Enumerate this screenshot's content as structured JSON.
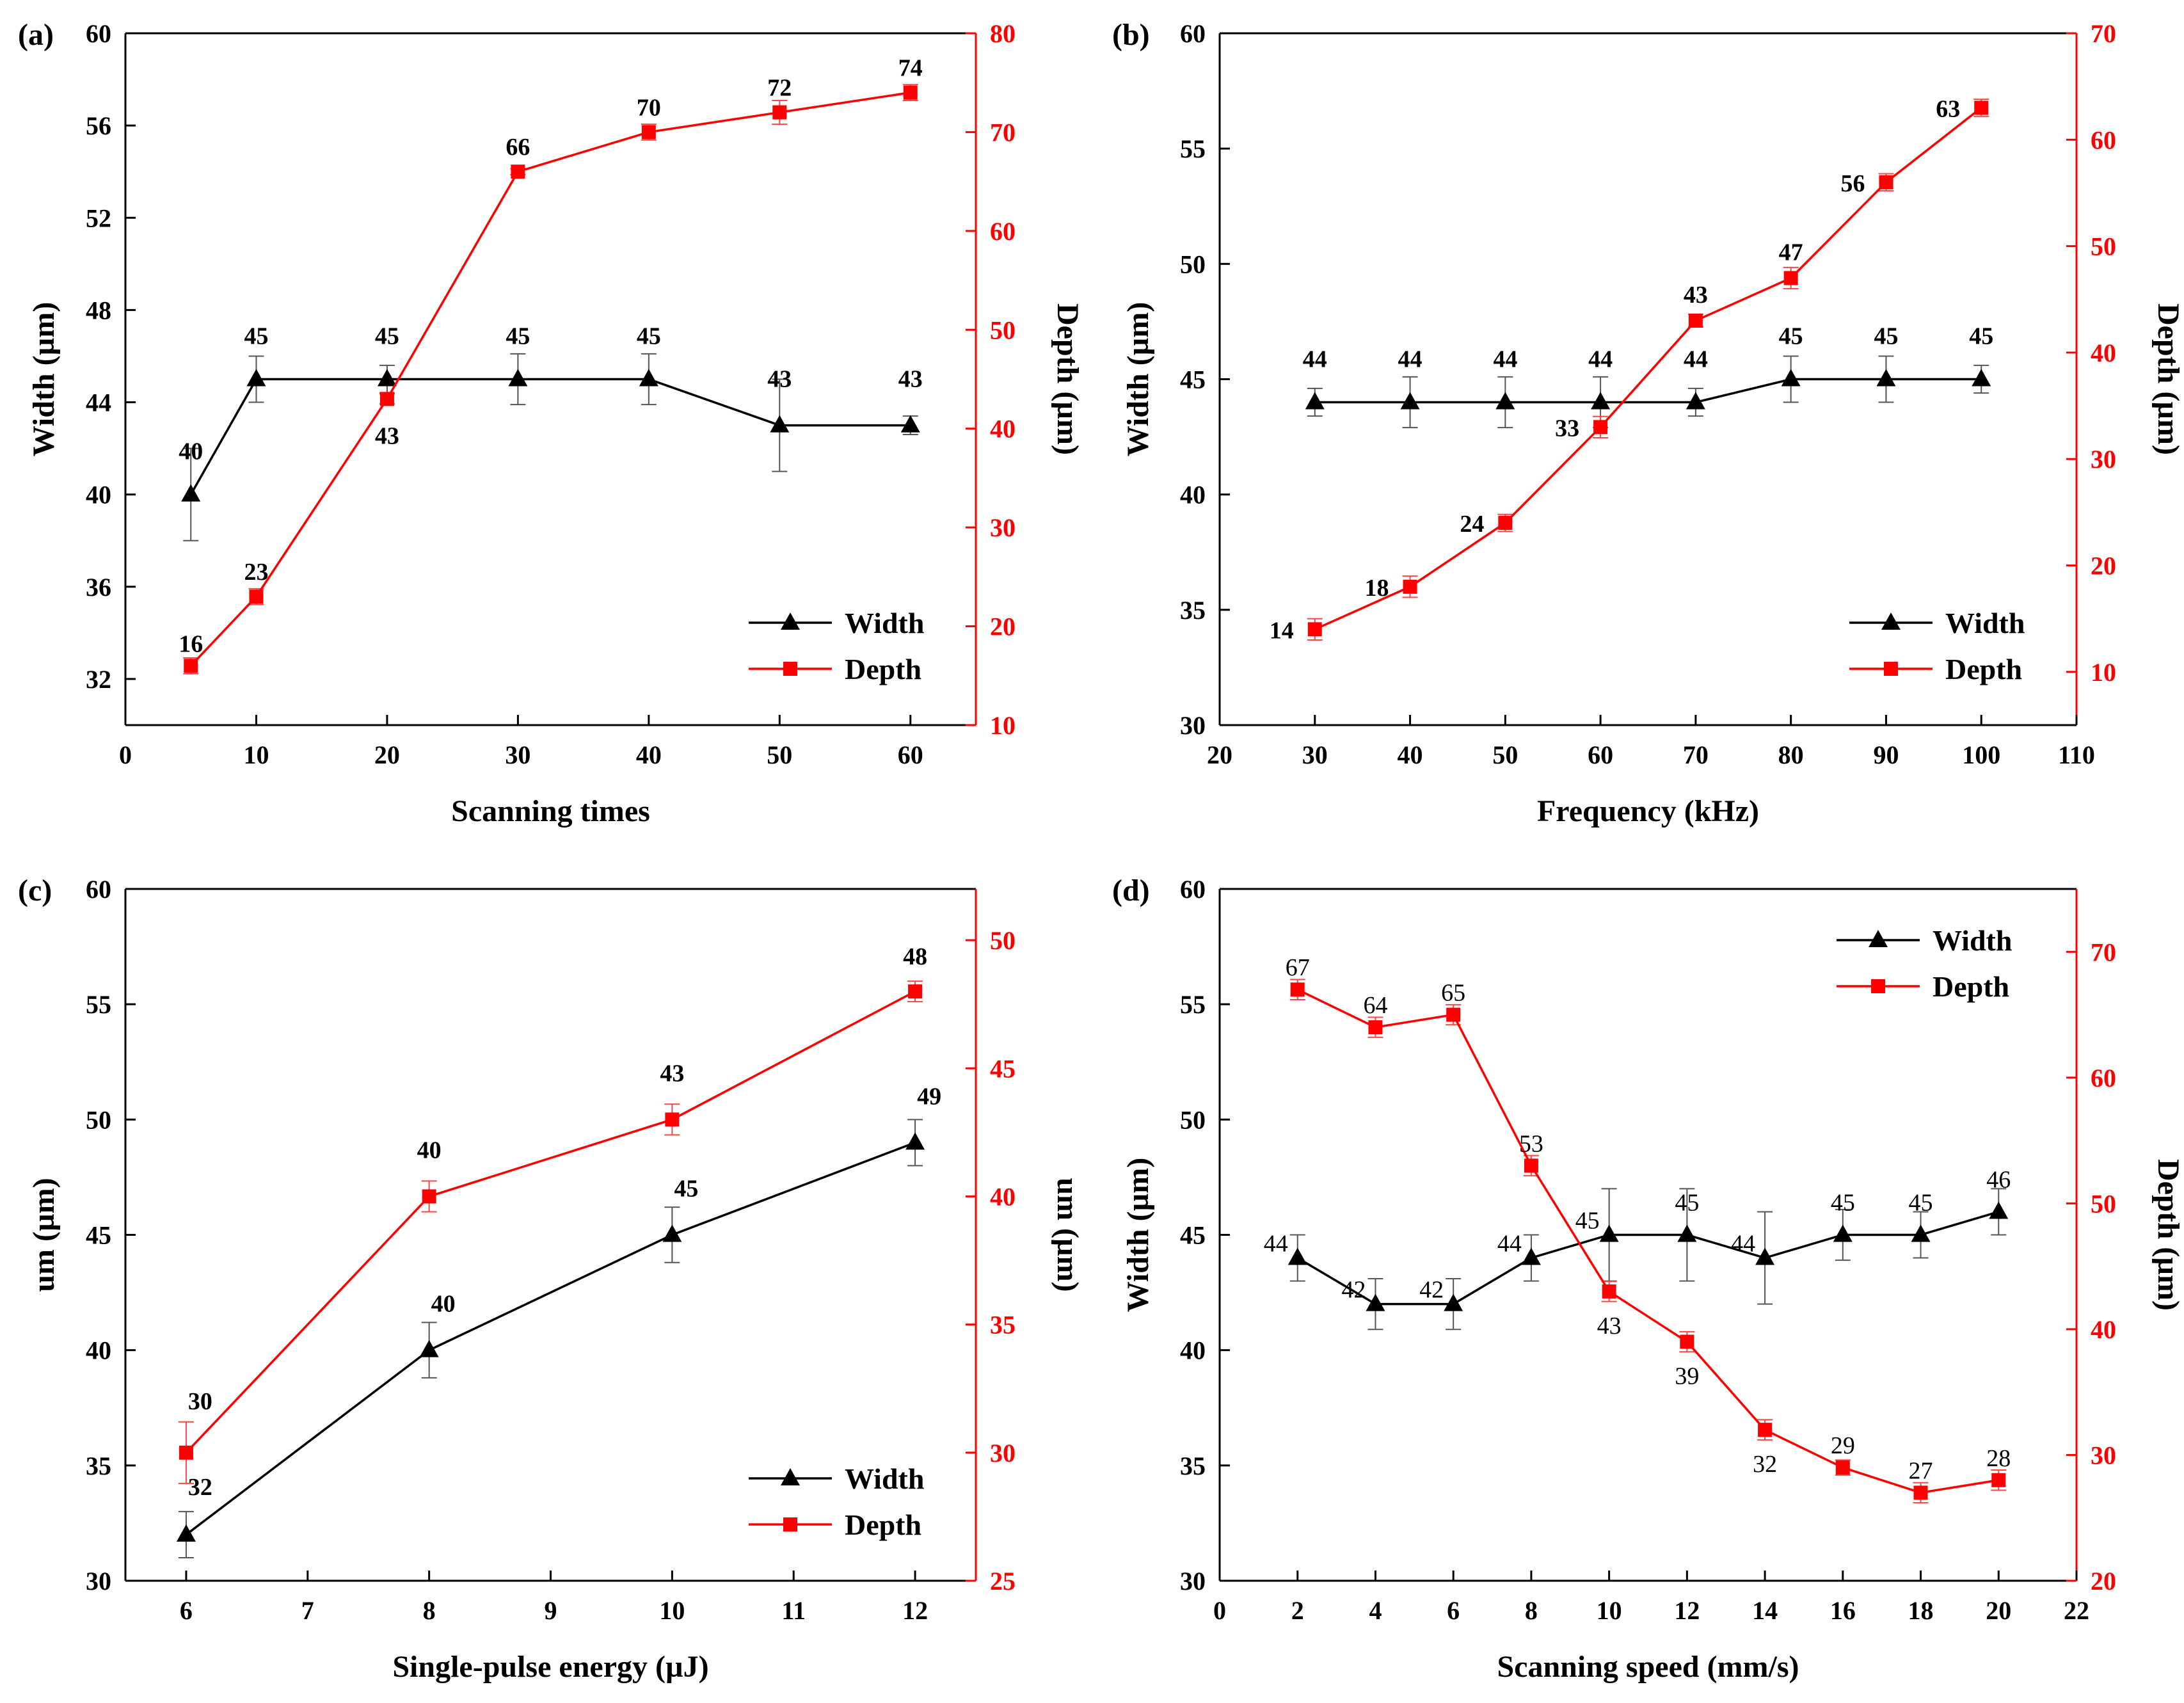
{
  "chart_data": [
    {
      "panel": "(a)",
      "type": "line",
      "xlabel": "Scanning times",
      "ylabel": "Width (µm)",
      "y2label": "Depth (µm)",
      "xlim": [
        0,
        65
      ],
      "xticks": [
        0,
        10,
        20,
        30,
        40,
        50,
        60
      ],
      "ylim": [
        30,
        60
      ],
      "yticks": [
        32,
        36,
        40,
        44,
        48,
        52,
        56,
        60
      ],
      "y2lim": [
        10,
        80
      ],
      "y2ticks": [
        10,
        20,
        30,
        40,
        50,
        60,
        70,
        80
      ],
      "legend": "bottom-right",
      "labels_bold": true,
      "series": [
        {
          "name": "Width",
          "axis": "left",
          "color": "#000000",
          "marker": "triangle",
          "x": [
            5,
            10,
            20,
            30,
            40,
            50,
            60
          ],
          "values": [
            40,
            45,
            45,
            45,
            45,
            43,
            43
          ],
          "errors": [
            2,
            1,
            0.6,
            1.1,
            1.1,
            2,
            0.4
          ],
          "labels": [
            "40",
            "45",
            "45",
            "45",
            "45",
            "43",
            "43"
          ]
        },
        {
          "name": "Depth",
          "axis": "right",
          "color": "#ff0000",
          "marker": "square",
          "x": [
            5,
            10,
            20,
            30,
            40,
            50,
            60
          ],
          "values": [
            16,
            23,
            43,
            66,
            70,
            72,
            74
          ],
          "errors": [
            0.8,
            0.8,
            0.5,
            0.3,
            0.8,
            1.2,
            0.8
          ],
          "labels": [
            "16",
            "23",
            "43",
            "66",
            "70",
            "72",
            "74"
          ]
        }
      ]
    },
    {
      "panel": "(b)",
      "type": "line",
      "xlabel": "Frequency (kHz)",
      "ylabel": "Width (µm)",
      "y2label": "Depth (µm)",
      "xlim": [
        20,
        110
      ],
      "xticks": [
        20,
        30,
        40,
        50,
        60,
        70,
        80,
        90,
        100,
        110
      ],
      "ylim": [
        30,
        60
      ],
      "yticks": [
        30,
        35,
        40,
        45,
        50,
        55,
        60
      ],
      "y2lim": [
        5,
        70
      ],
      "y2ticks": [
        10,
        20,
        30,
        40,
        50,
        60,
        70
      ],
      "legend": "bottom-right",
      "labels_bold": true,
      "series": [
        {
          "name": "Width",
          "axis": "left",
          "color": "#000000",
          "marker": "triangle",
          "x": [
            30,
            40,
            50,
            60,
            70,
            80,
            90,
            100
          ],
          "values": [
            44,
            44,
            44,
            44,
            44,
            45,
            45,
            45
          ],
          "errors": [
            0.6,
            1.1,
            1.1,
            1.1,
            0.6,
            1,
            1,
            0.6
          ],
          "labels": [
            "44",
            "44",
            "44",
            "44",
            "44",
            "45",
            "45",
            "45"
          ]
        },
        {
          "name": "Depth",
          "axis": "right",
          "color": "#ff0000",
          "marker": "square",
          "x": [
            30,
            40,
            50,
            60,
            70,
            80,
            90,
            100
          ],
          "values": [
            14,
            18,
            24,
            33,
            43,
            47,
            56,
            63
          ],
          "errors": [
            1,
            1,
            0.8,
            1,
            0.6,
            1,
            0.8,
            0.8
          ],
          "labels": [
            "14",
            "18",
            "24",
            "33",
            "43",
            "47",
            "56",
            "63"
          ]
        }
      ]
    },
    {
      "panel": "(c)",
      "type": "line",
      "xlabel": "Single-pulse energy (µJ)",
      "ylabel": "um (µm)",
      "y2label": "um (µm)",
      "xlim": [
        5.5,
        12.5
      ],
      "xticks": [
        6,
        7,
        8,
        9,
        10,
        11,
        12
      ],
      "ylim": [
        30,
        60
      ],
      "yticks": [
        30,
        35,
        40,
        45,
        50,
        55,
        60
      ],
      "y2lim": [
        25,
        52
      ],
      "y2ticks": [
        25,
        30,
        35,
        40,
        45,
        50
      ],
      "legend": "bottom-right",
      "labels_bold": true,
      "series": [
        {
          "name": "Width",
          "axis": "left",
          "color": "#000000",
          "marker": "triangle",
          "x": [
            6,
            8,
            10,
            12
          ],
          "values": [
            32,
            40,
            45,
            49
          ],
          "errors": [
            1,
            1.2,
            1.2,
            1
          ],
          "labels": [
            "32",
            "40",
            "45",
            "49"
          ]
        },
        {
          "name": "Depth",
          "axis": "right",
          "color": "#ff0000",
          "marker": "square",
          "x": [
            6,
            8,
            10,
            12
          ],
          "values": [
            30,
            40,
            43,
            48
          ],
          "errors": [
            1.2,
            0.6,
            0.6,
            0.4
          ],
          "labels": [
            "30",
            "40",
            "43",
            "48"
          ]
        }
      ]
    },
    {
      "panel": "(d)",
      "type": "line",
      "xlabel": "Scanning speed (mm/s)",
      "ylabel": "Width (µm)",
      "y2label": "Depth (µm)",
      "xlim": [
        0,
        22
      ],
      "xticks": [
        0,
        2,
        4,
        6,
        8,
        10,
        12,
        14,
        16,
        18,
        20,
        22
      ],
      "ylim": [
        30,
        60
      ],
      "yticks": [
        30,
        35,
        40,
        45,
        50,
        55,
        60
      ],
      "y2lim": [
        20,
        75
      ],
      "y2ticks": [
        20,
        30,
        40,
        50,
        60,
        70
      ],
      "legend": "top-right",
      "labels_bold": false,
      "series": [
        {
          "name": "Width",
          "axis": "left",
          "color": "#000000",
          "marker": "triangle",
          "x": [
            2,
            4,
            6,
            8,
            10,
            12,
            14,
            16,
            18,
            20
          ],
          "values": [
            44,
            42,
            42,
            44,
            45,
            45,
            44,
            45,
            45,
            46
          ],
          "errors": [
            1,
            1.1,
            1.1,
            1,
            2,
            2,
            2,
            1.1,
            1,
            1
          ],
          "labels": [
            "44",
            "42",
            "42",
            "44",
            "45",
            "45",
            "44",
            "45",
            "45",
            "46"
          ]
        },
        {
          "name": "Depth",
          "axis": "right",
          "color": "#ff0000",
          "marker": "square",
          "x": [
            2,
            4,
            6,
            8,
            10,
            12,
            14,
            16,
            18,
            20
          ],
          "values": [
            67,
            64,
            65,
            53,
            43,
            39,
            32,
            29,
            27,
            28
          ],
          "errors": [
            0.8,
            0.8,
            0.8,
            0.8,
            0.8,
            0.8,
            0.8,
            0.6,
            0.8,
            0.8
          ],
          "labels": [
            "67",
            "64",
            "65",
            "53",
            "43",
            "39",
            "32",
            "29",
            "27",
            "28"
          ]
        }
      ]
    }
  ]
}
